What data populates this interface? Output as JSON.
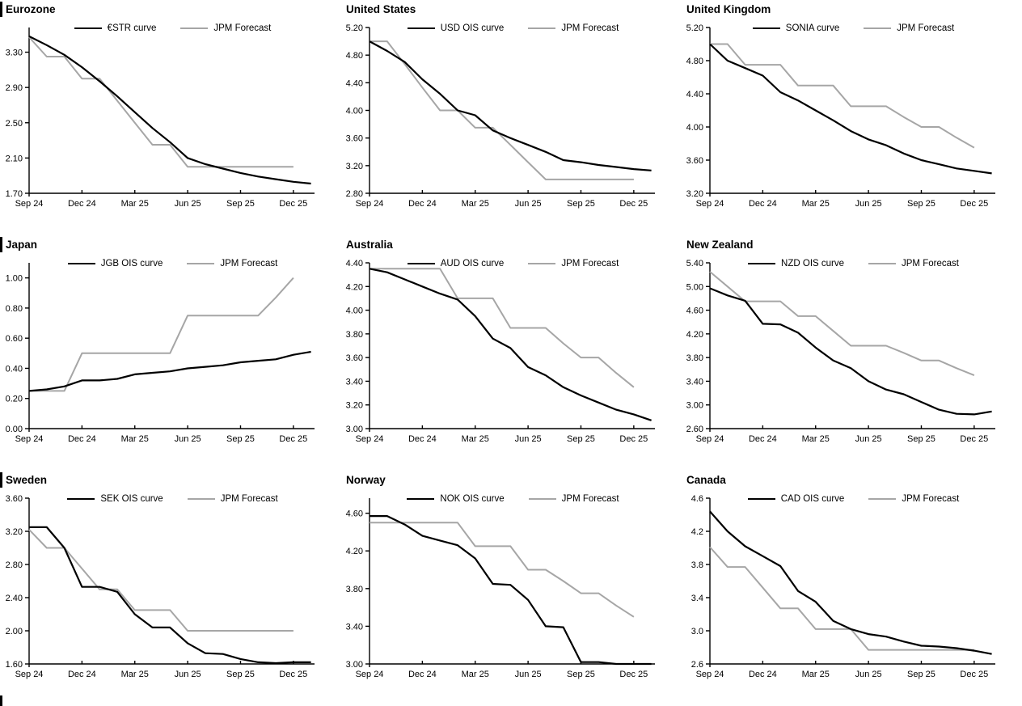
{
  "page": {
    "background": "#ffffff",
    "ois_line_color": "#000000",
    "forecast_line_color": "#a6a6a6"
  },
  "x_axis": {
    "tick_labels": [
      "Sep 24",
      "Dec 24",
      "Mar 25",
      "Jun 25",
      "Sep 25",
      "Dec 25"
    ],
    "tick_positions_months": [
      0,
      3,
      6,
      9,
      12,
      15
    ],
    "axis_span_months": 16.2
  },
  "chart_data": [
    {
      "type": "line",
      "title": "Eurozone",
      "ylim": [
        1.7,
        3.58
      ],
      "yticks": [
        3.3,
        2.9,
        2.5,
        2.1,
        1.7
      ],
      "y_decimals": 2,
      "grid": false,
      "legend_position": "top-center",
      "series": [
        {
          "name": "€STR curve",
          "color": "#000000",
          "values": [
            3.48,
            3.38,
            3.27,
            3.13,
            2.97,
            2.8,
            2.62,
            2.44,
            2.28,
            2.1,
            2.03,
            1.98,
            1.93,
            1.89,
            1.86,
            1.83,
            1.81
          ]
        },
        {
          "name": "JPM Forecast",
          "color": "#a6a6a6",
          "values": [
            3.47,
            3.25,
            3.25,
            3.0,
            3.0,
            2.75,
            2.5,
            2.25,
            2.25,
            2.0,
            2.0,
            2.0,
            2.0,
            2.0,
            2.0,
            2.0
          ]
        }
      ]
    },
    {
      "type": "line",
      "title": "United States",
      "ylim": [
        2.8,
        5.2
      ],
      "yticks": [
        5.2,
        4.8,
        4.4,
        4.0,
        3.6,
        3.2,
        2.8
      ],
      "y_decimals": 2,
      "grid": false,
      "legend_position": "top-center",
      "series": [
        {
          "name": "USD OIS curve",
          "color": "#000000",
          "values": [
            5.0,
            4.86,
            4.7,
            4.45,
            4.24,
            4.0,
            3.93,
            3.71,
            3.6,
            3.5,
            3.4,
            3.28,
            3.25,
            3.21,
            3.18,
            3.15,
            3.13
          ]
        },
        {
          "name": "JPM Forecast",
          "color": "#a6a6a6",
          "values": [
            5.0,
            5.0,
            4.67,
            4.33,
            4.0,
            4.0,
            3.75,
            3.75,
            3.5,
            3.25,
            3.0,
            3.0,
            3.0,
            3.0,
            3.0,
            3.0
          ]
        }
      ]
    },
    {
      "type": "line",
      "title": "United Kingdom",
      "ylim": [
        3.2,
        5.2
      ],
      "yticks": [
        5.2,
        4.8,
        4.4,
        4.0,
        3.6,
        3.2
      ],
      "y_decimals": 2,
      "grid": false,
      "legend_position": "top-center",
      "series": [
        {
          "name": "SONIA curve",
          "color": "#000000",
          "values": [
            5.0,
            4.8,
            4.71,
            4.62,
            4.42,
            4.32,
            4.2,
            4.08,
            3.95,
            3.85,
            3.78,
            3.68,
            3.6,
            3.55,
            3.5,
            3.47,
            3.44
          ]
        },
        {
          "name": "JPM Forecast",
          "color": "#a6a6a6",
          "values": [
            5.0,
            5.0,
            4.75,
            4.75,
            4.75,
            4.5,
            4.5,
            4.5,
            4.25,
            4.25,
            4.25,
            4.12,
            4.0,
            4.0,
            3.87,
            3.75
          ]
        }
      ]
    },
    {
      "type": "line",
      "title": "Japan",
      "ylim": [
        0.0,
        1.1
      ],
      "yticks": [
        1.0,
        0.8,
        0.6,
        0.4,
        0.2,
        0.0
      ],
      "y_decimals": 2,
      "grid": false,
      "legend_position": "top-center",
      "series": [
        {
          "name": "JGB OIS curve",
          "color": "#000000",
          "values": [
            0.25,
            0.26,
            0.28,
            0.32,
            0.32,
            0.33,
            0.36,
            0.37,
            0.38,
            0.4,
            0.41,
            0.42,
            0.44,
            0.45,
            0.46,
            0.49,
            0.51
          ]
        },
        {
          "name": "JPM Forecast",
          "color": "#a6a6a6",
          "values": [
            0.25,
            0.25,
            0.25,
            0.5,
            0.5,
            0.5,
            0.5,
            0.5,
            0.5,
            0.75,
            0.75,
            0.75,
            0.75,
            0.75,
            0.87,
            1.0
          ]
        }
      ]
    },
    {
      "type": "line",
      "title": "Australia",
      "ylim": [
        3.0,
        4.4
      ],
      "yticks": [
        4.4,
        4.2,
        4.0,
        3.8,
        3.6,
        3.4,
        3.2,
        3.0
      ],
      "y_decimals": 2,
      "grid": false,
      "legend_position": "top-center",
      "series": [
        {
          "name": "AUD OIS curve",
          "color": "#000000",
          "values": [
            4.35,
            4.32,
            4.26,
            4.2,
            4.14,
            4.09,
            3.95,
            3.76,
            3.68,
            3.52,
            3.45,
            3.35,
            3.28,
            3.22,
            3.16,
            3.12,
            3.07
          ]
        },
        {
          "name": "JPM Forecast",
          "color": "#a6a6a6",
          "values": [
            4.35,
            4.35,
            4.35,
            4.35,
            4.35,
            4.1,
            4.1,
            4.1,
            3.85,
            3.85,
            3.85,
            3.72,
            3.6,
            3.6,
            3.47,
            3.35
          ]
        }
      ]
    },
    {
      "type": "line",
      "title": "New Zealand",
      "ylim": [
        2.6,
        5.4
      ],
      "yticks": [
        5.4,
        5.0,
        4.6,
        4.2,
        3.8,
        3.4,
        3.0,
        2.6
      ],
      "y_decimals": 2,
      "grid": false,
      "legend_position": "top-center",
      "series": [
        {
          "name": "NZD OIS curve",
          "color": "#000000",
          "values": [
            4.97,
            4.85,
            4.76,
            4.37,
            4.36,
            4.22,
            3.97,
            3.75,
            3.62,
            3.4,
            3.26,
            3.18,
            3.05,
            2.92,
            2.85,
            2.84,
            2.89
          ]
        },
        {
          "name": "JPM Forecast",
          "color": "#a6a6a6",
          "values": [
            5.25,
            5.0,
            4.75,
            4.75,
            4.75,
            4.5,
            4.5,
            4.25,
            4.0,
            4.0,
            4.0,
            3.88,
            3.75,
            3.75,
            3.62,
            3.5
          ]
        }
      ]
    },
    {
      "type": "line",
      "title": "Sweden",
      "ylim": [
        1.6,
        3.6
      ],
      "yticks": [
        3.6,
        3.2,
        2.8,
        2.4,
        2.0,
        1.6
      ],
      "y_decimals": 2,
      "grid": false,
      "legend_position": "top-center",
      "series": [
        {
          "name": "SEK OIS curve",
          "color": "#000000",
          "values": [
            3.25,
            3.25,
            3.0,
            2.53,
            2.53,
            2.47,
            2.2,
            2.04,
            2.04,
            1.85,
            1.73,
            1.72,
            1.66,
            1.62,
            1.61,
            1.62,
            1.62
          ]
        },
        {
          "name": "JPM Forecast",
          "color": "#a6a6a6",
          "values": [
            3.22,
            3.0,
            3.0,
            2.75,
            2.5,
            2.5,
            2.25,
            2.25,
            2.25,
            2.0,
            2.0,
            2.0,
            2.0,
            2.0,
            2.0,
            2.0
          ]
        }
      ]
    },
    {
      "type": "line",
      "title": "Norway",
      "ylim": [
        3.0,
        4.76
      ],
      "yticks": [
        4.6,
        4.2,
        3.8,
        3.4,
        3.0
      ],
      "y_decimals": 2,
      "grid": false,
      "legend_position": "top-center",
      "series": [
        {
          "name": "NOK OIS curve",
          "color": "#000000",
          "values": [
            4.57,
            4.57,
            4.48,
            4.36,
            4.31,
            4.26,
            4.12,
            3.85,
            3.84,
            3.68,
            3.4,
            3.39,
            3.02,
            3.02,
            3.0,
            3.0,
            3.0
          ]
        },
        {
          "name": "JPM Forecast",
          "color": "#a6a6a6",
          "values": [
            4.5,
            4.5,
            4.5,
            4.5,
            4.5,
            4.5,
            4.25,
            4.25,
            4.25,
            4.0,
            4.0,
            3.88,
            3.75,
            3.75,
            3.62,
            3.5
          ]
        }
      ]
    },
    {
      "type": "line",
      "title": "Canada",
      "ylim": [
        2.6,
        4.6
      ],
      "yticks": [
        4.6,
        4.2,
        3.8,
        3.4,
        3.0,
        2.6
      ],
      "y_decimals": 1,
      "grid": false,
      "legend_position": "top-center",
      "series": [
        {
          "name": "CAD OIS curve",
          "color": "#000000",
          "values": [
            4.44,
            4.2,
            4.02,
            3.9,
            3.78,
            3.48,
            3.35,
            3.12,
            3.02,
            2.96,
            2.93,
            2.87,
            2.82,
            2.81,
            2.79,
            2.76,
            2.72
          ]
        },
        {
          "name": "JPM Forecast",
          "color": "#a6a6a6",
          "values": [
            4.01,
            3.77,
            3.77,
            3.52,
            3.27,
            3.27,
            3.02,
            3.02,
            3.02,
            2.77,
            2.77,
            2.77,
            2.77,
            2.77,
            2.77,
            2.77
          ]
        }
      ]
    }
  ]
}
